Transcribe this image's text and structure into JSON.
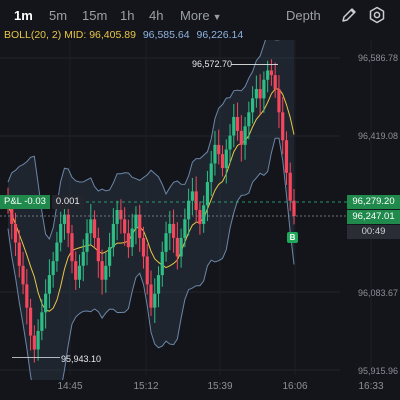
{
  "toolbar": {
    "timeframes": [
      "1m",
      "5m",
      "15m",
      "1h",
      "4h"
    ],
    "more_label": "More",
    "depth_label": "Depth",
    "icons": [
      "pencil-icon",
      "settings-icon"
    ]
  },
  "indicator": {
    "name": "BOLL(20, 2)",
    "mid": "MID: 96,405.89",
    "upper": "96,585.64",
    "lower": "96,226.14"
  },
  "y_axis": [
    "96,586.78",
    "96,419.08",
    "96,083.67",
    "95,915.96"
  ],
  "price_tags": {
    "upper": "96,279.20",
    "current": "96,247.01",
    "countdown": "00:49"
  },
  "pnl": {
    "label": "P&L -0.03",
    "qty": "0.001"
  },
  "annotations": {
    "high": "96,572.70",
    "low": "95,943.10"
  },
  "marker": "B",
  "colors": {
    "up": "#2ebd85",
    "down": "#f6465d",
    "mid": "#e8c547",
    "band": "#8fb3e0"
  },
  "chart_data": {
    "type": "candlestick",
    "x_ticks": [
      "14:45",
      "15:12",
      "15:39",
      "16:06",
      "16:33"
    ],
    "y_ticks": [
      96586.78,
      96419.08,
      96083.67,
      95915.96
    ],
    "ylim": [
      95910,
      96595
    ],
    "high_marker": 96572.7,
    "low_marker": 95943.1,
    "last_price": 96247.01,
    "closes": [
      96270,
      96230,
      96190,
      96140,
      96100,
      96050,
      95990,
      95960,
      96000,
      96040,
      96080,
      96120,
      96150,
      96190,
      96230,
      96250,
      96210,
      96150,
      96110,
      96140,
      96170,
      96210,
      96240,
      96200,
      96150,
      96110,
      96140,
      96180,
      96230,
      96260,
      96240,
      96210,
      96180,
      96220,
      96250,
      96200,
      96160,
      96100,
      96050,
      96080,
      96120,
      96170,
      96210,
      96230,
      96200,
      96160,
      96200,
      96240,
      96280,
      96300,
      96260,
      96230,
      96270,
      96320,
      96360,
      96400,
      96380,
      96350,
      96390,
      96420,
      96460,
      96430,
      96400,
      96440,
      96470,
      96500,
      96520,
      96500,
      96540,
      96560,
      96550,
      96520,
      96470,
      96410,
      96340,
      96280,
      96247
    ]
  }
}
